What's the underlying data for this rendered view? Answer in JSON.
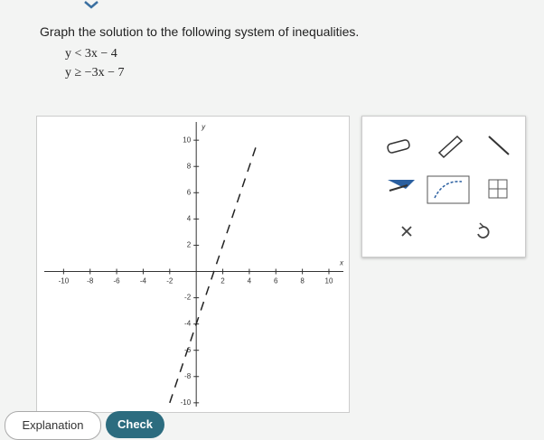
{
  "header": {
    "prompt": "Graph the solution to the following system of inequalities."
  },
  "inequalities": [
    "y < 3x − 4",
    "y ≥ −3x − 7"
  ],
  "graph": {
    "xlim": [
      -12,
      11.5
    ],
    "ylim": [
      -10.7,
      11.8
    ],
    "xticks": [
      -10,
      -8,
      -6,
      -4,
      -2,
      2,
      4,
      6,
      8,
      10
    ],
    "yticks": [
      10,
      8,
      6,
      4,
      2,
      -2,
      -4,
      -6,
      -8,
      -10
    ],
    "x_label": "x",
    "y_label": "y",
    "dashed_line": {
      "x": [
        -2,
        4.6
      ],
      "y": [
        -10,
        9.8
      ]
    }
  },
  "buttons": [
    "Explanation",
    "Check"
  ]
}
